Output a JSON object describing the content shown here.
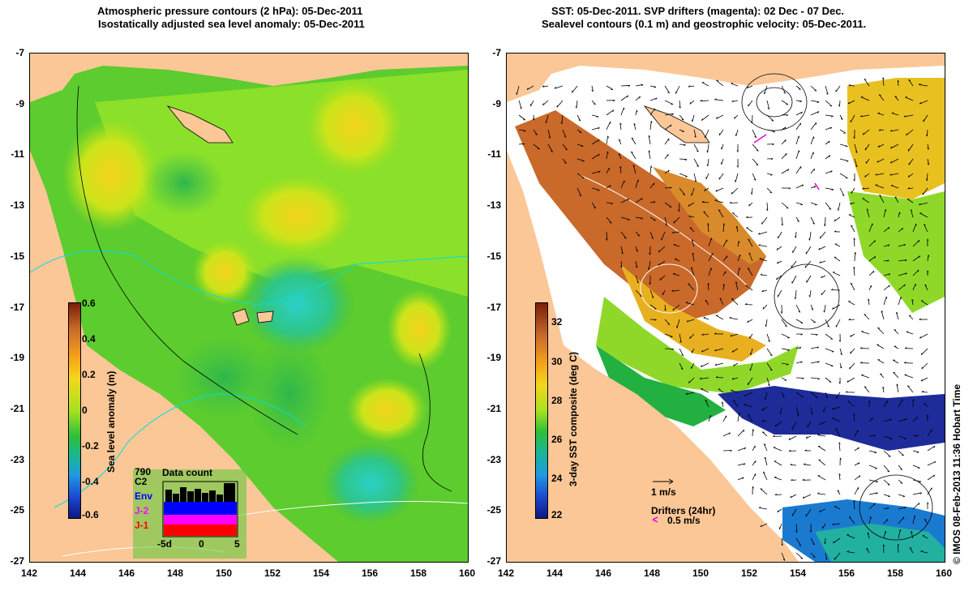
{
  "left_panel": {
    "title_line1": "Atmospheric pressure contours (2 hPa): 05-Dec-2011",
    "title_line2": "Isostatically adjusted sea level anomaly: 05-Dec-2011",
    "colorbar_label": "Sea level anomaly (m)",
    "colorbar_ticks": [
      "0.6",
      "0.4",
      "0.2",
      "0",
      "-0.2",
      "-0.4",
      "-0.6"
    ],
    "data_count": {
      "title": "Data count",
      "satellites": [
        "C2",
        "Env",
        "J-2",
        "J-1"
      ],
      "colors": {
        "C2": "#000000",
        "Env": "#0000ff",
        "J-2": "#ff00ff",
        "J-1": "#ff0000"
      },
      "xticks": [
        "-5d",
        "0",
        "5"
      ]
    },
    "annotation": "790"
  },
  "right_panel": {
    "title_line1": "SST: 05-Dec-2011. SVP drifters (magenta): 02 Dec - 07 Dec.",
    "title_line2": "Sealevel contours (0.1 m) and geostrophic velocity: 05-Dec-2011.",
    "colorbar_label": "3-day SST composite (deg C)",
    "colorbar_ticks": [
      "32",
      "30",
      "28",
      "26",
      "24",
      "22"
    ],
    "velocity_legend": "1 m/s",
    "drifters_legend": "Drifters (24hr)",
    "drifters_speed": "0.5 m/s"
  },
  "axes": {
    "x_ticks": [
      "142",
      "144",
      "146",
      "148",
      "150",
      "152",
      "154",
      "156",
      "158",
      "160"
    ],
    "y_ticks": [
      "-7",
      "-9",
      "-11",
      "-13",
      "-15",
      "-17",
      "-19",
      "-21",
      "-23",
      "-25",
      "-27"
    ]
  },
  "credit": "© IMOS 08-Feb-2013 11:36 Hobart Time",
  "colors": {
    "land": "#fbc796",
    "sla_mid": "#7fe030",
    "sst_warm": "#c9692a",
    "sst_cool": "#1e2c9a"
  }
}
